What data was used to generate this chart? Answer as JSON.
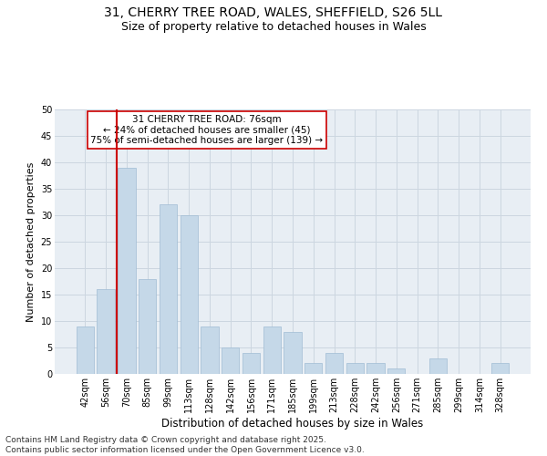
{
  "title1": "31, CHERRY TREE ROAD, WALES, SHEFFIELD, S26 5LL",
  "title2": "Size of property relative to detached houses in Wales",
  "xlabel": "Distribution of detached houses by size in Wales",
  "ylabel": "Number of detached properties",
  "categories": [
    "42sqm",
    "56sqm",
    "70sqm",
    "85sqm",
    "99sqm",
    "113sqm",
    "128sqm",
    "142sqm",
    "156sqm",
    "171sqm",
    "185sqm",
    "199sqm",
    "213sqm",
    "228sqm",
    "242sqm",
    "256sqm",
    "271sqm",
    "285sqm",
    "299sqm",
    "314sqm",
    "328sqm"
  ],
  "values": [
    9,
    16,
    39,
    18,
    32,
    30,
    9,
    5,
    4,
    9,
    8,
    2,
    4,
    2,
    2,
    1,
    0,
    3,
    0,
    0,
    2
  ],
  "bar_color": "#c5d8e8",
  "bar_edge_color": "#a0bcd4",
  "vline_color": "#cc0000",
  "annotation_text": "31 CHERRY TREE ROAD: 76sqm\n← 24% of detached houses are smaller (45)\n75% of semi-detached houses are larger (139) →",
  "annotation_box_color": "#cc0000",
  "annotation_box_bg": "#ffffff",
  "ylim": [
    0,
    50
  ],
  "yticks": [
    0,
    5,
    10,
    15,
    20,
    25,
    30,
    35,
    40,
    45,
    50
  ],
  "grid_color": "#ccd6e0",
  "bg_color": "#e8eef4",
  "footer": "Contains HM Land Registry data © Crown copyright and database right 2025.\nContains public sector information licensed under the Open Government Licence v3.0.",
  "title1_fontsize": 10,
  "title2_fontsize": 9,
  "xlabel_fontsize": 8.5,
  "ylabel_fontsize": 8,
  "tick_fontsize": 7,
  "annotation_fontsize": 7.5,
  "footer_fontsize": 6.5
}
